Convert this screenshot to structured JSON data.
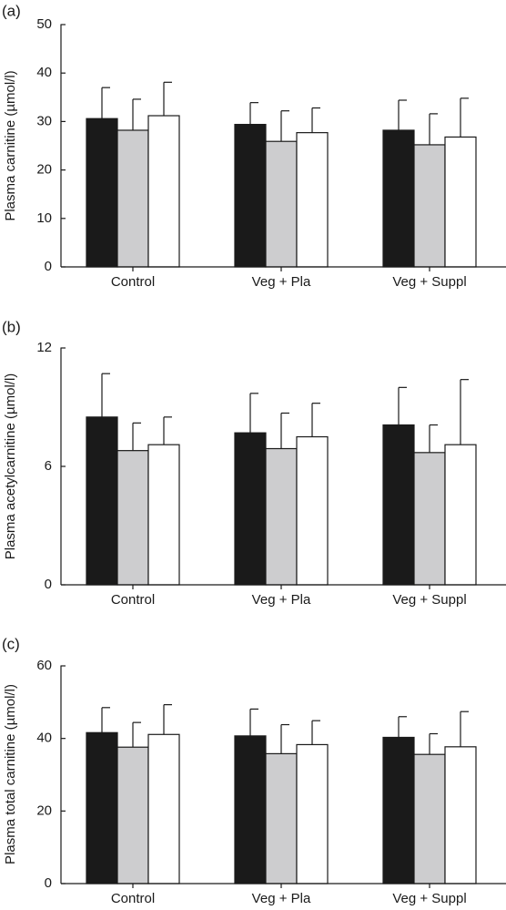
{
  "colors": {
    "first_bar": "#1a1a1a",
    "second_bar": "#cdcdcf",
    "third_bar": "#ffffff",
    "axis": "#1a1a1a"
  },
  "chart_data": [
    {
      "type": "bar",
      "panel_label": "(a)",
      "ylabel": "Plasma carnitine (µmol/l)",
      "ylim": [
        0,
        50
      ],
      "yticks": [
        0,
        10,
        20,
        30,
        40,
        50
      ],
      "categories": [
        "Control",
        "Veg + Pla",
        "Veg + Suppl"
      ],
      "series": [
        {
          "values": [
            30.6,
            29.4,
            28.2
          ],
          "errors": [
            6.4,
            4.5,
            6.2
          ]
        },
        {
          "values": [
            28.2,
            25.9,
            25.2
          ],
          "errors": [
            6.4,
            6.3,
            6.4
          ]
        },
        {
          "values": [
            31.2,
            27.7,
            26.8
          ],
          "errors": [
            6.9,
            5.1,
            8.0
          ]
        }
      ]
    },
    {
      "type": "bar",
      "panel_label": "(b)",
      "ylabel": "Plasma acetylcarnitine (µmol/l)",
      "ylim": [
        0,
        12
      ],
      "yticks": [
        0,
        6,
        12
      ],
      "categories": [
        "Control",
        "Veg + Pla",
        "Veg + Suppl"
      ],
      "series": [
        {
          "values": [
            8.5,
            7.7,
            8.1
          ],
          "errors": [
            2.2,
            2.0,
            1.9
          ]
        },
        {
          "values": [
            6.8,
            6.9,
            6.7
          ],
          "errors": [
            1.4,
            1.8,
            1.4
          ]
        },
        {
          "values": [
            7.1,
            7.5,
            7.1
          ],
          "errors": [
            1.4,
            1.7,
            3.3
          ]
        }
      ]
    },
    {
      "type": "bar",
      "panel_label": "(c)",
      "ylabel": "Plasma total carnitine (µmol/l)",
      "ylim": [
        0,
        60
      ],
      "yticks": [
        0,
        20,
        40,
        60
      ],
      "categories": [
        "Control",
        "Veg + Pla",
        "Veg + Suppl"
      ],
      "series": [
        {
          "values": [
            41.6,
            40.7,
            40.3
          ],
          "errors": [
            6.9,
            7.4,
            5.7
          ]
        },
        {
          "values": [
            37.6,
            35.8,
            35.6
          ],
          "errors": [
            6.8,
            8.0,
            5.7
          ]
        },
        {
          "values": [
            41.1,
            38.3,
            37.7
          ],
          "errors": [
            8.2,
            6.6,
            9.7
          ]
        }
      ]
    }
  ]
}
